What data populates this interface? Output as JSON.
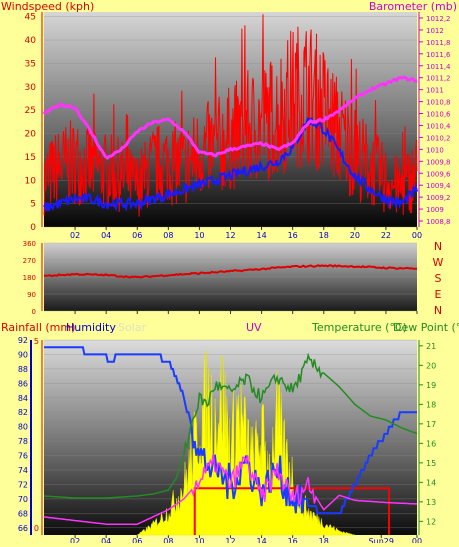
{
  "top_panel": {
    "left_title": "Windspeed (kph)",
    "center_title": "",
    "right_title": "Barometer (mb)"
  },
  "mid_panel": {
    "dir_labels": [
      "N",
      "W",
      "S",
      "E",
      "N"
    ]
  },
  "bottom_panel": {
    "rainfall_title": "Rainfall (mm)",
    "humidity_title": "Humidity",
    "solar_title": "Solar",
    "uv_title": "UV",
    "temp_title": "Temperature (°C)",
    "dew_title": "Dew Point (°C"
  },
  "x_hour_labels": [
    "02",
    "04",
    "06",
    "08",
    "10",
    "12",
    "14",
    "16",
    "18",
    "20",
    "22",
    "00"
  ],
  "bottom_x_labels": [
    "02",
    "04",
    "06",
    "08",
    "10",
    "12",
    "14",
    "16",
    "18",
    "Sun29",
    "00"
  ],
  "colors": {
    "page_bg": "#ffff99",
    "wind_gust": "#ff0000",
    "wind_avg": "#1a1aff",
    "barometer": "#ff33ff",
    "direction": "#dd0000",
    "humidity": "#1a3cff",
    "temperature": "#228b22",
    "solar": "#ffff00",
    "uv": "#ff33ff",
    "rain": "#ff0000",
    "title_red": "#dd0000",
    "title_magenta": "#cc00cc"
  },
  "chart_data": [
    {
      "type": "line",
      "name": "wind-barometer",
      "title": "",
      "ylabel": "Windspeed (kph)",
      "y2label": "Barometer (mb)",
      "x_labels": [
        "02",
        "04",
        "06",
        "08",
        "10",
        "12",
        "14",
        "16",
        "18",
        "20",
        "22",
        "00"
      ],
      "ylim": [
        0,
        46
      ],
      "yticks": [
        0,
        5,
        10,
        15,
        20,
        25,
        30,
        35,
        40,
        45
      ],
      "y2lim": [
        1008.7,
        1012.3
      ],
      "y2ticks": [
        "1008,8",
        "1009",
        "1009,2",
        "1009,4",
        "1009,6",
        "1009,8",
        "1010",
        "1010,2",
        "1010,4",
        "1010,6",
        "1010,8",
        "1011",
        "1011,2",
        "1011,4",
        "1011,6",
        "1011,8",
        "1012",
        "1012,2"
      ],
      "series": [
        {
          "name": "gust",
          "hours": [
            0,
            1,
            2,
            3,
            4,
            5,
            6,
            7,
            8,
            9,
            10,
            11,
            12,
            13,
            14,
            15,
            16,
            17,
            18,
            19,
            20,
            21,
            22,
            23,
            24
          ],
          "values": [
            10,
            13,
            14,
            13,
            12,
            11,
            9,
            13,
            14,
            13,
            16,
            17,
            19,
            21,
            22,
            24,
            28,
            29,
            25,
            20,
            16,
            13,
            10,
            8,
            12
          ]
        },
        {
          "name": "average",
          "hours": [
            0,
            1,
            2,
            3,
            4,
            5,
            6,
            7,
            8,
            9,
            10,
            11,
            12,
            13,
            14,
            15,
            16,
            17,
            18,
            19,
            20,
            21,
            22,
            23,
            24
          ],
          "values": [
            4,
            5,
            6,
            6,
            5,
            5,
            5,
            6,
            7,
            8,
            9,
            10,
            11,
            12,
            13,
            14,
            17,
            23,
            21,
            16,
            11,
            8,
            6,
            5,
            8
          ]
        },
        {
          "name": "barometer",
          "hours": [
            0,
            1,
            2,
            3,
            4,
            5,
            6,
            7,
            8,
            9,
            10,
            11,
            12,
            13,
            14,
            15,
            16,
            17,
            18,
            19,
            20,
            21,
            22,
            23,
            24
          ],
          "values": [
            1010.6,
            1010.75,
            1010.7,
            1010.3,
            1009.85,
            1010.0,
            1010.3,
            1010.45,
            1010.5,
            1010.3,
            1009.95,
            1009.9,
            1010.0,
            1010.05,
            1010.1,
            1010.0,
            1010.1,
            1010.45,
            1010.5,
            1010.65,
            1010.85,
            1011.0,
            1011.1,
            1011.2,
            1011.15
          ]
        }
      ]
    },
    {
      "type": "line",
      "name": "wind-direction",
      "yticks": [
        0,
        90,
        180,
        270,
        360
      ],
      "ylim": [
        0,
        360
      ],
      "series": [
        {
          "name": "direction",
          "hours": [
            0,
            2,
            4,
            6,
            8,
            10,
            12,
            14,
            16,
            18,
            20,
            22,
            24
          ],
          "values": [
            185,
            195,
            190,
            178,
            190,
            200,
            210,
            222,
            235,
            240,
            236,
            228,
            225
          ]
        }
      ]
    },
    {
      "type": "line",
      "name": "rain-humidity-temperature",
      "x_labels": [
        "02",
        "04",
        "06",
        "08",
        "10",
        "12",
        "14",
        "16",
        "18",
        "Sun29",
        "00"
      ],
      "rain_yticks": [
        0,
        5
      ],
      "humidity_ylim": [
        65,
        92
      ],
      "humidity_yticks": [
        66,
        68,
        70,
        72,
        74,
        76,
        78,
        80,
        82,
        84,
        86,
        88,
        90,
        92
      ],
      "temp_ylim": [
        11.3,
        21.3
      ],
      "temp_yticks": [
        12,
        13,
        14,
        15,
        16,
        17,
        18,
        19,
        20,
        21
      ],
      "series": [
        {
          "name": "humidity",
          "hours": [
            0,
            2,
            3,
            3.8,
            4.2,
            5,
            6,
            7,
            8,
            8.5,
            9,
            9.5,
            10,
            11,
            12,
            13,
            14,
            15,
            16,
            17,
            18,
            19,
            20,
            21,
            22,
            23,
            24
          ],
          "values": [
            91,
            91,
            90,
            90,
            89,
            90,
            90,
            90,
            89,
            87,
            84,
            80,
            76,
            74,
            72,
            75,
            71,
            74,
            70,
            69,
            68,
            68,
            72,
            76,
            79,
            82,
            82
          ]
        },
        {
          "name": "temperature",
          "hours": [
            0,
            2,
            4,
            6,
            7,
            8,
            8.5,
            9,
            9.5,
            10,
            10.5,
            11,
            12,
            13,
            14,
            15,
            16,
            17,
            18,
            19,
            20,
            21,
            22,
            23,
            24
          ],
          "values": [
            13.3,
            13.2,
            13.2,
            13.3,
            13.4,
            13.6,
            14.2,
            15.4,
            17.0,
            18.3,
            18.0,
            19.0,
            18.6,
            19.3,
            18.3,
            19.4,
            18.7,
            20.2,
            19.6,
            18.9,
            18.0,
            17.4,
            17.2,
            16.8,
            16.5
          ]
        },
        {
          "name": "uv",
          "hours": [
            0,
            2,
            4,
            6,
            7,
            8,
            9,
            10,
            11,
            12,
            13,
            14,
            15,
            16,
            17,
            18,
            19,
            20,
            22,
            24
          ],
          "values": [
            67.5,
            67.0,
            66.5,
            66.5,
            67.5,
            68.5,
            70.0,
            72.5,
            75.0,
            72.0,
            75.5,
            70.0,
            74.0,
            70.0,
            72.0,
            68.5,
            70.5,
            69.8,
            69.5,
            69.3
          ]
        },
        {
          "name": "solar",
          "hours": [
            6,
            7,
            8,
            9,
            10,
            10.5,
            11,
            11.5,
            12,
            12.5,
            13,
            13.5,
            14,
            14.5,
            15,
            15.5,
            16,
            16.5,
            17,
            18,
            19,
            20
          ],
          "values": [
            0,
            5,
            12,
            25,
            55,
            70,
            60,
            72,
            45,
            65,
            50,
            38,
            52,
            35,
            60,
            42,
            30,
            18,
            12,
            6,
            2,
            0
          ]
        },
        {
          "name": "rain",
          "hours": [
            0,
            9.7,
            9.7,
            22.2,
            22.2,
            24
          ],
          "values": [
            0,
            0,
            1.2,
            1.2,
            0,
            0
          ]
        }
      ]
    }
  ]
}
